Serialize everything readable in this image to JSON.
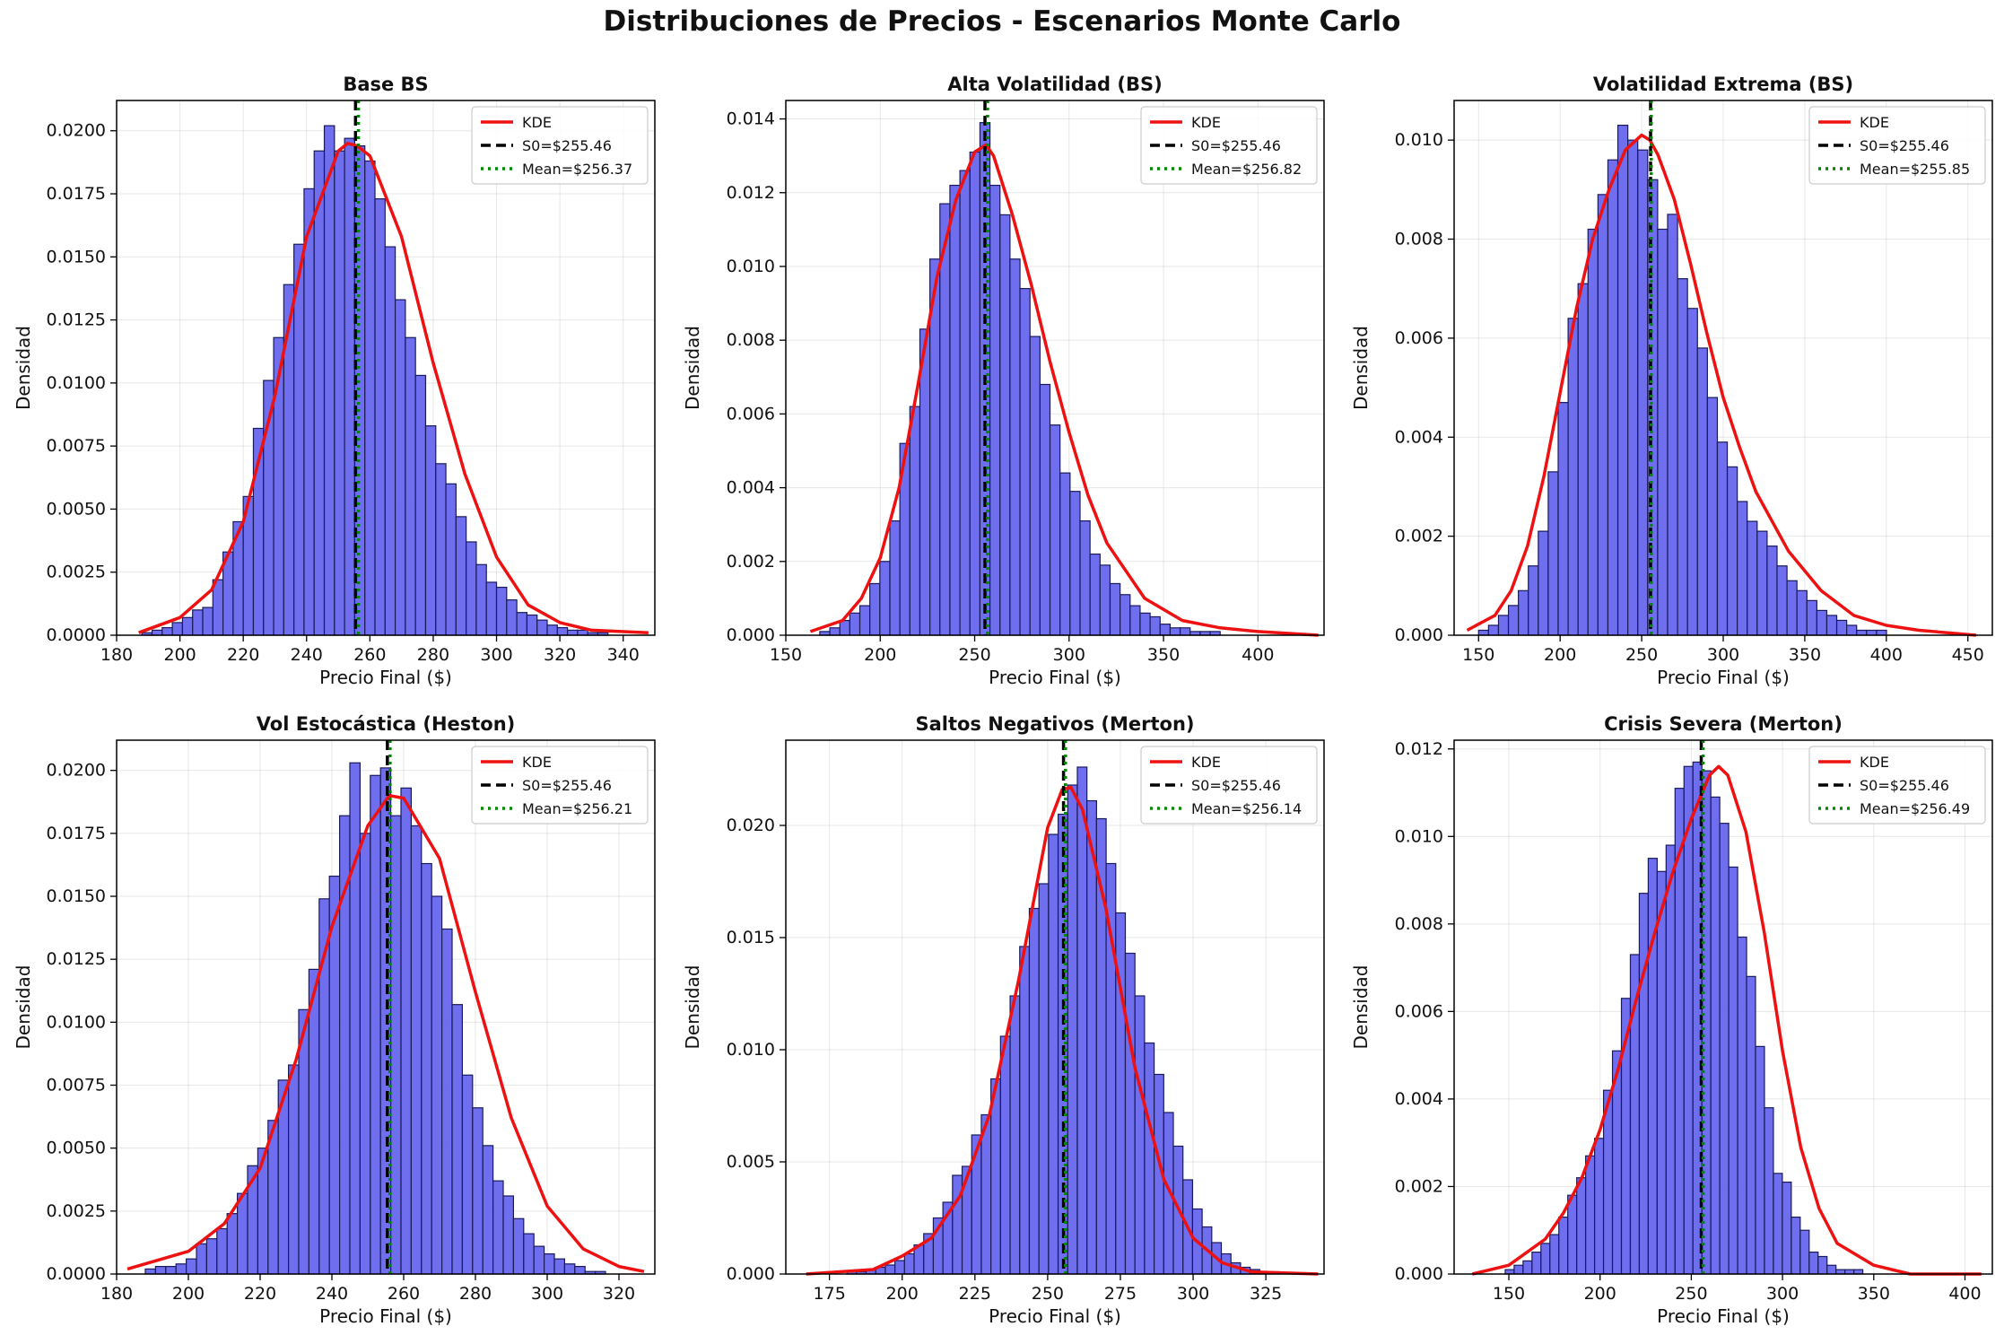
{
  "figure_title": "Distribuciones de Precios - Escenarios Monte Carlo",
  "colors": {
    "bars": "#6666ee",
    "bar_edge": "#1a1a5a",
    "kde": "#ee1111",
    "s0": "#000000",
    "mean": "#008800"
  },
  "chart_data": [
    {
      "type": "histogram",
      "title": "Base BS",
      "xlabel": "Precio Final ($)",
      "ylabel": "Densidad",
      "xlim": [
        180,
        350
      ],
      "ylim": [
        0,
        0.0212
      ],
      "xticks": [
        180,
        200,
        220,
        240,
        260,
        280,
        300,
        320,
        340
      ],
      "yticks": [
        0.0,
        0.0025,
        0.005,
        0.0075,
        0.01,
        0.0125,
        0.015,
        0.0175,
        0.02
      ],
      "ytick_labels": [
        "0.0000",
        "0.0025",
        "0.0050",
        "0.0075",
        "0.0100",
        "0.0125",
        "0.0150",
        "0.0175",
        "0.0200"
      ],
      "bins": {
        "start": 188,
        "width": 3.2,
        "values": [
          0.0001,
          0.0002,
          0.0003,
          0.0005,
          0.0007,
          0.001,
          0.0011,
          0.0022,
          0.0033,
          0.0045,
          0.0055,
          0.0082,
          0.0101,
          0.0118,
          0.0139,
          0.0155,
          0.0177,
          0.0192,
          0.0202,
          0.0192,
          0.0197,
          0.0194,
          0.0188,
          0.0173,
          0.0154,
          0.0133,
          0.0118,
          0.0103,
          0.0083,
          0.0068,
          0.006,
          0.0047,
          0.0037,
          0.0028,
          0.0021,
          0.0019,
          0.0014,
          0.0009,
          0.0008,
          0.0006,
          0.0004,
          0.0003,
          0.0002,
          0.0002,
          0.0001,
          0.0001
        ]
      },
      "kde": {
        "x": [
          187,
          200,
          210,
          220,
          230,
          240,
          250,
          253,
          256,
          260,
          270,
          280,
          290,
          300,
          310,
          320,
          330,
          348
        ],
        "y": [
          0.0001,
          0.0007,
          0.0018,
          0.0045,
          0.0095,
          0.0158,
          0.0192,
          0.0195,
          0.0194,
          0.019,
          0.0158,
          0.0108,
          0.0064,
          0.0031,
          0.0012,
          0.0005,
          0.0002,
          0.0001
        ]
      },
      "s0": 255.46,
      "mean": 256.37,
      "legend": [
        "KDE",
        "S0=$255.46",
        "Mean=$256.37"
      ],
      "legend_position": "upper-right"
    },
    {
      "type": "histogram",
      "title": "Alta Volatilidad (BS)",
      "xlabel": "Precio Final ($)",
      "ylabel": "Densidad",
      "xlim": [
        150,
        435
      ],
      "ylim": [
        0,
        0.0145
      ],
      "xticks": [
        150,
        200,
        250,
        300,
        350,
        400
      ],
      "yticks": [
        0.0,
        0.002,
        0.004,
        0.006,
        0.008,
        0.01,
        0.012,
        0.014
      ],
      "ytick_labels": [
        "0.000",
        "0.002",
        "0.004",
        "0.006",
        "0.008",
        "0.010",
        "0.012",
        "0.014"
      ],
      "bins": {
        "start": 168,
        "width": 5.3,
        "values": [
          0.0001,
          0.0002,
          0.0004,
          0.0006,
          0.0008,
          0.0014,
          0.002,
          0.0031,
          0.0052,
          0.0062,
          0.0083,
          0.0102,
          0.0117,
          0.0122,
          0.0126,
          0.0131,
          0.0139,
          0.0122,
          0.0114,
          0.0102,
          0.0094,
          0.0081,
          0.0068,
          0.0057,
          0.0044,
          0.0039,
          0.0031,
          0.0022,
          0.0019,
          0.0014,
          0.0011,
          0.0008,
          0.0006,
          0.0005,
          0.0003,
          0.0002,
          0.0002,
          0.0001,
          0.0001,
          0.0001
        ]
      },
      "kde": {
        "x": [
          163,
          180,
          190,
          200,
          210,
          220,
          230,
          240,
          250,
          256,
          260,
          270,
          280,
          290,
          300,
          310,
          320,
          340,
          360,
          380,
          400,
          432
        ],
        "y": [
          0.0001,
          0.0004,
          0.001,
          0.0021,
          0.004,
          0.0068,
          0.0097,
          0.0118,
          0.0131,
          0.0133,
          0.013,
          0.0114,
          0.0095,
          0.0074,
          0.0055,
          0.0038,
          0.0025,
          0.001,
          0.0004,
          0.0002,
          0.0001,
          0.0
        ]
      },
      "s0": 255.46,
      "mean": 256.82,
      "legend": [
        "KDE",
        "S0=$255.46",
        "Mean=$256.82"
      ],
      "legend_position": "upper-right"
    },
    {
      "type": "histogram",
      "title": "Volatilidad Extrema (BS)",
      "xlabel": "Precio Final ($)",
      "ylabel": "Densidad",
      "xlim": [
        135,
        465
      ],
      "ylim": [
        0,
        0.0108
      ],
      "xticks": [
        150,
        200,
        250,
        300,
        350,
        400,
        450
      ],
      "yticks": [
        0.0,
        0.002,
        0.004,
        0.006,
        0.008,
        0.01
      ],
      "ytick_labels": [
        "0.000",
        "0.002",
        "0.004",
        "0.006",
        "0.008",
        "0.010"
      ],
      "bins": {
        "start": 150,
        "width": 6.1,
        "values": [
          0.0001,
          0.0002,
          0.0004,
          0.0006,
          0.0009,
          0.0014,
          0.0021,
          0.0033,
          0.0047,
          0.0064,
          0.0071,
          0.0082,
          0.0089,
          0.0096,
          0.0103,
          0.01,
          0.0098,
          0.0092,
          0.0082,
          0.0085,
          0.0072,
          0.0066,
          0.0058,
          0.0048,
          0.0039,
          0.0034,
          0.0027,
          0.0023,
          0.0021,
          0.0018,
          0.0014,
          0.0011,
          0.0009,
          0.0007,
          0.0005,
          0.0004,
          0.0003,
          0.0002,
          0.0001,
          0.0001,
          0.0001
        ]
      },
      "kde": {
        "x": [
          143,
          160,
          170,
          180,
          190,
          200,
          210,
          220,
          230,
          240,
          250,
          255,
          260,
          270,
          280,
          290,
          300,
          310,
          320,
          340,
          360,
          380,
          400,
          420,
          455
        ],
        "y": [
          0.0001,
          0.0004,
          0.0009,
          0.0018,
          0.0032,
          0.0049,
          0.0066,
          0.008,
          0.009,
          0.0098,
          0.0101,
          0.01,
          0.0097,
          0.0088,
          0.0075,
          0.0061,
          0.0048,
          0.0038,
          0.0029,
          0.0017,
          0.0009,
          0.0004,
          0.0002,
          0.0001,
          0.0
        ]
      },
      "s0": 255.46,
      "mean": 255.85,
      "legend": [
        "KDE",
        "S0=$255.46",
        "Mean=$255.85"
      ],
      "legend_position": "upper-right"
    },
    {
      "type": "histogram",
      "title": "Vol Estocástica (Heston)",
      "xlabel": "Precio Final ($)",
      "ylabel": "Densidad",
      "xlim": [
        180,
        330
      ],
      "ylim": [
        0,
        0.0212
      ],
      "xticks": [
        180,
        200,
        220,
        240,
        260,
        280,
        300,
        320
      ],
      "yticks": [
        0.0,
        0.0025,
        0.005,
        0.0075,
        0.01,
        0.0125,
        0.015,
        0.0175,
        0.02
      ],
      "ytick_labels": [
        "0.0000",
        "0.0025",
        "0.0050",
        "0.0075",
        "0.0100",
        "0.0125",
        "0.0150",
        "0.0175",
        "0.0200"
      ],
      "bins": {
        "start": 188,
        "width": 2.85,
        "values": [
          0.0002,
          0.0003,
          0.0003,
          0.0004,
          0.0006,
          0.0012,
          0.0014,
          0.0018,
          0.0024,
          0.0032,
          0.0043,
          0.005,
          0.0061,
          0.0077,
          0.0083,
          0.0105,
          0.0121,
          0.0149,
          0.0158,
          0.0182,
          0.0203,
          0.0175,
          0.0198,
          0.0201,
          0.0182,
          0.0193,
          0.0178,
          0.0163,
          0.015,
          0.0137,
          0.0107,
          0.0079,
          0.0066,
          0.0051,
          0.0037,
          0.0031,
          0.0022,
          0.0016,
          0.0011,
          0.0008,
          0.0006,
          0.0004,
          0.0003,
          0.0001,
          0.0001
        ]
      },
      "kde": {
        "x": [
          183,
          200,
          210,
          220,
          230,
          240,
          250,
          256,
          260,
          270,
          280,
          290,
          300,
          310,
          320,
          327
        ],
        "y": [
          0.0002,
          0.0009,
          0.002,
          0.0042,
          0.0085,
          0.0138,
          0.0178,
          0.019,
          0.0189,
          0.0165,
          0.0112,
          0.0062,
          0.0027,
          0.001,
          0.0003,
          0.0001
        ]
      },
      "s0": 255.46,
      "mean": 256.21,
      "legend": [
        "KDE",
        "S0=$255.46",
        "Mean=$256.21"
      ],
      "legend_position": "upper-right"
    },
    {
      "type": "histogram",
      "title": "Saltos Negativos (Merton)",
      "xlabel": "Precio Final ($)",
      "ylabel": "Densidad",
      "xlim": [
        160,
        345
      ],
      "ylim": [
        0,
        0.0238
      ],
      "xticks": [
        175,
        200,
        225,
        250,
        275,
        300,
        325,
        350
      ],
      "yticks": [
        0.0,
        0.005,
        0.01,
        0.015,
        0.02
      ],
      "ytick_labels": [
        "0.000",
        "0.005",
        "0.010",
        "0.015",
        "0.020"
      ],
      "bins": {
        "start": 181,
        "width": 3.3,
        "values": [
          0.0001,
          0.0001,
          0.0002,
          0.0003,
          0.0004,
          0.0006,
          0.0009,
          0.0013,
          0.0018,
          0.0025,
          0.0032,
          0.0044,
          0.0048,
          0.0062,
          0.0071,
          0.0087,
          0.0106,
          0.0124,
          0.0146,
          0.0163,
          0.0174,
          0.0196,
          0.0205,
          0.0218,
          0.0226,
          0.0211,
          0.0203,
          0.0183,
          0.0161,
          0.0143,
          0.0124,
          0.0103,
          0.0089,
          0.0072,
          0.0057,
          0.0042,
          0.0029,
          0.0021,
          0.0014,
          0.0009,
          0.0005,
          0.0003,
          0.0002,
          0.0001,
          0.0001
        ]
      },
      "kde": {
        "x": [
          167,
          190,
          200,
          210,
          220,
          230,
          240,
          250,
          255,
          258,
          262,
          270,
          280,
          290,
          300,
          310,
          320,
          343
        ],
        "y": [
          0.0,
          0.0002,
          0.0008,
          0.0016,
          0.0035,
          0.0071,
          0.0131,
          0.0199,
          0.0216,
          0.0217,
          0.0207,
          0.0163,
          0.0092,
          0.0042,
          0.0016,
          0.0005,
          0.0001,
          0.0
        ]
      },
      "s0": 255.46,
      "mean": 256.14,
      "legend": [
        "KDE",
        "S0=$255.46",
        "Mean=$256.14"
      ],
      "legend_position": "upper-right"
    },
    {
      "type": "histogram",
      "title": "Crisis Severa (Merton)",
      "xlabel": "Precio Final ($)",
      "ylabel": "Densidad",
      "xlim": [
        120,
        415
      ],
      "ylim": [
        0,
        0.0122
      ],
      "xticks": [
        150,
        200,
        250,
        300,
        350,
        400
      ],
      "yticks": [
        0.0,
        0.002,
        0.004,
        0.006,
        0.008,
        0.01,
        0.012
      ],
      "ytick_labels": [
        "0.000",
        "0.002",
        "0.004",
        "0.006",
        "0.008",
        "0.010",
        "0.012"
      ],
      "bins": {
        "start": 148,
        "width": 4.9,
        "values": [
          0.0001,
          0.0002,
          0.0003,
          0.0005,
          0.0007,
          0.0009,
          0.0013,
          0.0018,
          0.0022,
          0.0027,
          0.0031,
          0.0042,
          0.0051,
          0.0063,
          0.0073,
          0.0087,
          0.0095,
          0.0092,
          0.0098,
          0.0111,
          0.0116,
          0.0117,
          0.0115,
          0.0109,
          0.0103,
          0.0093,
          0.0077,
          0.0068,
          0.0052,
          0.0038,
          0.0023,
          0.0021,
          0.0013,
          0.001,
          0.0005,
          0.0004,
          0.0002,
          0.0001,
          0.0001,
          0.0001
        ]
      },
      "kde": {
        "x": [
          130,
          150,
          170,
          180,
          190,
          200,
          210,
          220,
          230,
          240,
          250,
          260,
          265,
          270,
          280,
          290,
          300,
          310,
          320,
          330,
          350,
          370,
          409
        ],
        "y": [
          0.0,
          0.0002,
          0.0008,
          0.0014,
          0.0022,
          0.0033,
          0.0047,
          0.0063,
          0.0078,
          0.0092,
          0.0104,
          0.0114,
          0.0116,
          0.0114,
          0.0101,
          0.0078,
          0.0051,
          0.0029,
          0.0015,
          0.0007,
          0.0002,
          0.0,
          0.0
        ]
      },
      "s0": 255.46,
      "mean": 256.49,
      "legend": [
        "KDE",
        "S0=$255.46",
        "Mean=$256.49"
      ],
      "legend_position": "upper-right"
    }
  ]
}
